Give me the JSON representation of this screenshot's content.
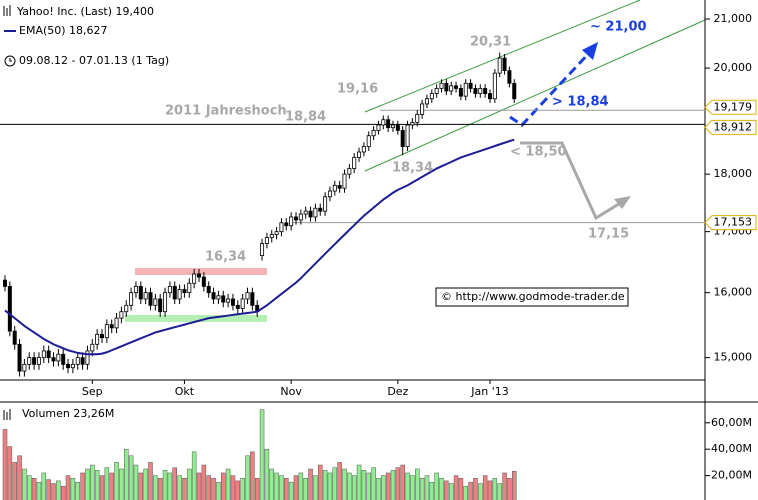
{
  "chart_data": {
    "type": "candlestick",
    "subtitle": "09.08.12 - 07.01.13 (1 Tag)",
    "credit": "© http://www.godmode-trader.de",
    "log_scale": true,
    "categories": [
      null,
      null,
      null,
      null,
      null,
      null,
      null,
      null,
      null,
      null,
      null,
      null,
      null,
      null,
      null,
      null,
      null,
      null,
      "Sep",
      null,
      null,
      null,
      null,
      null,
      null,
      null,
      null,
      null,
      null,
      null,
      null,
      null,
      null,
      null,
      null,
      null,
      null,
      "Okt",
      null,
      null,
      null,
      null,
      null,
      null,
      null,
      null,
      null,
      null,
      null,
      null,
      null,
      null,
      null,
      null,
      null,
      null,
      null,
      null,
      null,
      "Nov",
      null,
      null,
      null,
      null,
      null,
      null,
      null,
      null,
      null,
      null,
      null,
      null,
      null,
      null,
      null,
      null,
      null,
      null,
      null,
      null,
      null,
      "Dez",
      null,
      null,
      null,
      null,
      null,
      null,
      null,
      null,
      null,
      null,
      null,
      null,
      null,
      null,
      null,
      null,
      null,
      null,
      "Jan '13",
      null,
      null,
      null,
      null,
      null
    ],
    "ylim": [
      14.67,
      21.4
    ],
    "yticks": [
      {
        "value": 15,
        "label": "15,000"
      },
      {
        "value": 16,
        "label": "16,000"
      },
      {
        "value": 17,
        "label": "17,000"
      },
      {
        "value": 18,
        "label": "18,000"
      },
      {
        "value": 20,
        "label": "20,000"
      },
      {
        "value": 21,
        "label": "21,000"
      }
    ],
    "series": [
      {
        "name": "Yahoo! Inc. (Last) 19,400",
        "color": "#000000",
        "up_fill": "#ffffff",
        "down_fill": "#000000",
        "open": [
          16.2,
          16.1,
          15.4,
          15.2,
          14.8,
          14.9,
          15.0,
          14.9,
          15.0,
          15.1,
          15.0,
          14.95,
          15.05,
          14.9,
          14.85,
          14.9,
          15.0,
          14.9,
          15.1,
          15.2,
          15.35,
          15.3,
          15.5,
          15.45,
          15.6,
          15.7,
          15.8,
          16.0,
          16.1,
          15.9,
          16.0,
          15.8,
          15.9,
          15.7,
          16.0,
          16.1,
          15.9,
          16.05,
          16.0,
          16.15,
          16.3,
          16.25,
          16.1,
          16.0,
          15.9,
          15.95,
          15.85,
          15.9,
          15.8,
          15.75,
          15.9,
          16.0,
          15.8,
          16.6,
          16.8,
          16.9,
          16.95,
          17.0,
          17.15,
          17.1,
          17.25,
          17.2,
          17.3,
          17.35,
          17.25,
          17.4,
          17.35,
          17.6,
          17.7,
          17.8,
          17.75,
          18.0,
          18.1,
          18.3,
          18.4,
          18.5,
          18.7,
          18.8,
          18.9,
          19.0,
          18.85,
          18.9,
          18.8,
          18.5,
          18.9,
          18.95,
          19.1,
          19.3,
          19.4,
          19.5,
          19.6,
          19.7,
          19.55,
          19.65,
          19.6,
          19.45,
          19.7,
          19.6,
          19.5,
          19.6,
          19.5,
          19.4,
          19.9,
          20.2,
          19.95,
          19.7
        ],
        "high": [
          16.28,
          16.18,
          15.48,
          15.28,
          14.98,
          15.08,
          15.08,
          15.08,
          15.18,
          15.18,
          15.08,
          15.13,
          15.13,
          14.98,
          14.98,
          15.08,
          15.08,
          15.18,
          15.28,
          15.43,
          15.43,
          15.58,
          15.58,
          15.68,
          15.78,
          15.88,
          16.08,
          16.18,
          16.18,
          16.08,
          16.08,
          15.98,
          15.98,
          16.08,
          16.18,
          16.18,
          16.13,
          16.13,
          16.23,
          16.38,
          16.38,
          16.33,
          16.18,
          16.08,
          16.03,
          16.03,
          15.98,
          15.98,
          15.88,
          15.98,
          16.08,
          16.08,
          15.88,
          16.88,
          16.98,
          17.03,
          17.08,
          17.23,
          17.23,
          17.33,
          17.33,
          17.38,
          17.43,
          17.43,
          17.48,
          17.48,
          17.68,
          17.78,
          17.88,
          17.88,
          18.08,
          18.18,
          18.38,
          18.48,
          18.58,
          18.78,
          18.88,
          18.98,
          19.08,
          19.08,
          18.98,
          18.98,
          18.88,
          18.98,
          19.03,
          19.18,
          19.38,
          19.48,
          19.58,
          19.68,
          19.78,
          19.78,
          19.73,
          19.73,
          19.68,
          19.78,
          19.78,
          19.68,
          19.68,
          19.68,
          19.58,
          19.98,
          20.31,
          20.28,
          20.03,
          19.78
        ],
        "low": [
          16.02,
          15.32,
          15.12,
          14.72,
          14.72,
          14.82,
          14.82,
          14.82,
          14.92,
          14.92,
          14.87,
          14.87,
          14.82,
          14.77,
          14.77,
          14.82,
          14.82,
          14.82,
          15.02,
          15.12,
          15.22,
          15.22,
          15.37,
          15.37,
          15.52,
          15.62,
          15.72,
          15.92,
          15.82,
          15.82,
          15.72,
          15.72,
          15.62,
          15.62,
          15.92,
          15.82,
          15.82,
          15.92,
          15.92,
          16.07,
          16.17,
          16.02,
          15.92,
          15.82,
          15.82,
          15.77,
          15.77,
          15.72,
          15.67,
          15.67,
          15.82,
          15.72,
          15.62,
          16.52,
          16.72,
          16.82,
          16.87,
          16.92,
          17.02,
          17.02,
          17.12,
          17.12,
          17.22,
          17.17,
          17.17,
          17.27,
          17.27,
          17.52,
          17.62,
          17.67,
          17.67,
          17.92,
          18.02,
          18.22,
          18.32,
          18.42,
          18.62,
          18.72,
          18.82,
          18.77,
          18.77,
          18.72,
          18.34,
          18.42,
          18.82,
          18.87,
          19.02,
          19.22,
          19.32,
          19.42,
          19.52,
          19.47,
          19.47,
          19.52,
          19.37,
          19.37,
          19.52,
          19.42,
          19.42,
          19.42,
          19.32,
          19.32,
          19.82,
          19.87,
          19.62,
          19.32
        ],
        "close": [
          16.1,
          15.4,
          15.2,
          14.8,
          14.9,
          15.0,
          14.9,
          15.0,
          15.1,
          15.0,
          14.95,
          15.05,
          14.9,
          14.85,
          14.9,
          15.0,
          14.9,
          15.1,
          15.2,
          15.35,
          15.3,
          15.5,
          15.45,
          15.6,
          15.7,
          15.8,
          16.0,
          16.1,
          15.9,
          16.0,
          15.8,
          15.9,
          15.7,
          16.0,
          16.1,
          15.9,
          16.05,
          16.0,
          16.15,
          16.3,
          16.25,
          16.1,
          16.0,
          15.9,
          15.95,
          15.85,
          15.9,
          15.8,
          15.75,
          15.9,
          16.0,
          15.8,
          15.7,
          16.8,
          16.9,
          16.95,
          17.0,
          17.15,
          17.1,
          17.25,
          17.2,
          17.3,
          17.35,
          17.25,
          17.4,
          17.35,
          17.6,
          17.7,
          17.8,
          17.75,
          18.0,
          18.1,
          18.3,
          18.4,
          18.5,
          18.7,
          18.8,
          18.9,
          19.0,
          18.85,
          18.9,
          18.8,
          18.5,
          18.9,
          18.95,
          19.1,
          19.3,
          19.4,
          19.5,
          19.6,
          19.7,
          19.55,
          19.65,
          19.6,
          19.45,
          19.7,
          19.6,
          19.5,
          19.6,
          19.5,
          19.4,
          19.9,
          20.2,
          19.95,
          19.7,
          19.4
        ]
      },
      {
        "name": "EMA(50) 18,627",
        "color": "#1c1c96",
        "values": [
          15.72,
          15.66,
          15.6,
          15.54,
          15.48,
          15.43,
          15.38,
          15.33,
          15.28,
          15.24,
          15.2,
          15.17,
          15.14,
          15.11,
          15.09,
          15.07,
          15.06,
          15.05,
          15.05,
          15.05,
          15.06,
          15.08,
          15.11,
          15.14,
          15.17,
          15.2,
          15.23,
          15.26,
          15.29,
          15.32,
          15.35,
          15.38,
          15.4,
          15.42,
          15.44,
          15.46,
          15.48,
          15.5,
          15.52,
          15.54,
          15.56,
          15.58,
          15.6,
          15.61,
          15.62,
          15.63,
          15.64,
          15.65,
          15.66,
          15.67,
          15.68,
          15.69,
          15.7,
          15.75,
          15.8,
          15.86,
          15.92,
          15.98,
          16.04,
          16.1,
          16.16,
          16.23,
          16.31,
          16.39,
          16.47,
          16.55,
          16.63,
          16.71,
          16.79,
          16.87,
          16.95,
          17.03,
          17.11,
          17.19,
          17.27,
          17.34,
          17.41,
          17.48,
          17.55,
          17.61,
          17.67,
          17.72,
          17.76,
          17.8,
          17.85,
          17.9,
          17.95,
          18.0,
          18.05,
          18.1,
          18.14,
          18.18,
          18.22,
          18.26,
          18.3,
          18.33,
          18.36,
          18.39,
          18.42,
          18.45,
          18.48,
          18.51,
          18.54,
          18.57,
          18.6,
          18.627
        ]
      }
    ],
    "volume": {
      "name": "Volumen 23,26M",
      "up_color": "#90ee90",
      "down_color": "#f08080",
      "ylim": [
        0,
        75
      ],
      "yticks": [
        {
          "value": 20,
          "label": "20,00M"
        },
        {
          "value": 40,
          "label": "40,00M"
        },
        {
          "value": 60,
          "label": "60,00M"
        }
      ],
      "values": [
        55,
        42,
        30,
        35,
        25,
        20,
        18,
        15,
        22,
        17,
        14,
        16,
        12,
        20,
        18,
        15,
        22,
        25,
        28,
        24,
        20,
        26,
        22,
        30,
        25,
        40,
        35,
        28,
        22,
        25,
        30,
        20,
        18,
        24,
        22,
        26,
        20,
        18,
        25,
        38,
        22,
        28,
        20,
        18,
        15,
        22,
        25,
        20,
        16,
        18,
        35,
        38,
        18,
        70,
        40,
        25,
        22,
        20,
        18,
        15,
        20,
        22,
        18,
        25,
        20,
        28,
        24,
        22,
        26,
        30,
        25,
        22,
        20,
        28,
        24,
        22,
        26,
        18,
        20,
        22,
        24,
        26,
        28,
        22,
        20,
        25,
        18,
        20,
        15,
        22,
        18,
        16,
        14,
        20,
        18,
        12,
        15,
        18,
        14,
        20,
        16,
        18,
        14,
        22,
        18,
        23.26
      ]
    },
    "levels": [
      {
        "value": 19.179,
        "label": "19,179",
        "color": "#999999"
      },
      {
        "value": 18.912,
        "label": "18,912",
        "color": "#000000"
      },
      {
        "value": 17.153,
        "label": "17,153",
        "color": "#999999"
      }
    ],
    "annotations": [
      "2011 Jahreshoch",
      "18,84",
      "16,34",
      "19,16",
      "20,31",
      "18,34",
      "< 18,50",
      "17,15",
      "~ 21,00",
      "> 18,84"
    ]
  }
}
